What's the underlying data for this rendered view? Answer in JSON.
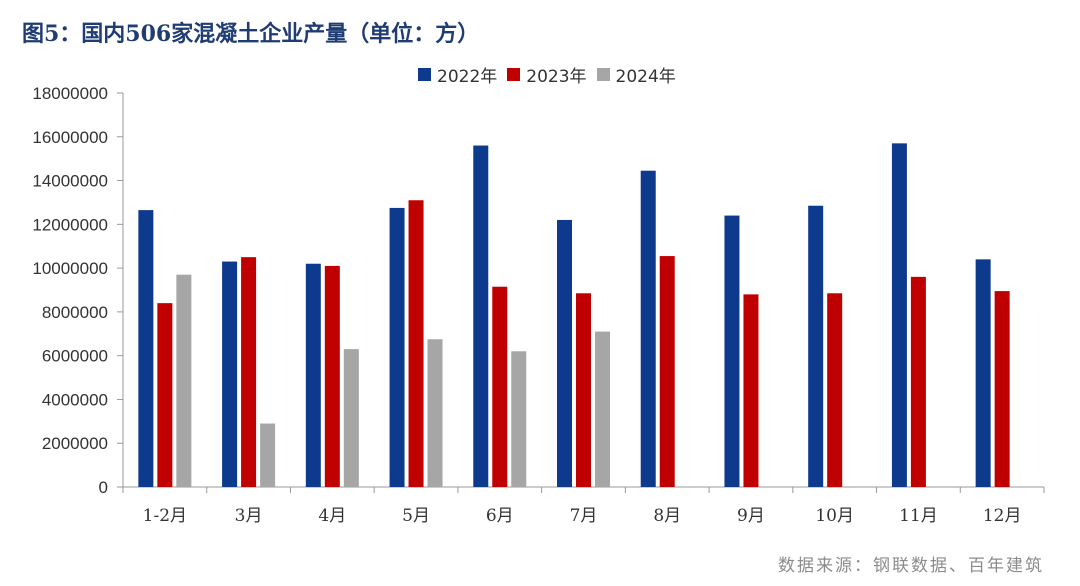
{
  "title": "图5：国内506家混凝土企业产量（单位：方）",
  "source": "数据来源：钢联数据、百年建筑",
  "chart_data": {
    "type": "bar",
    "categories": [
      "1-2月",
      "3月",
      "4月",
      "5月",
      "6月",
      "7月",
      "8月",
      "9月",
      "10月",
      "11月",
      "12月"
    ],
    "series": [
      {
        "name": "2022年",
        "color": "#0d3a8c",
        "values": [
          12650000,
          10300000,
          10200000,
          12750000,
          15600000,
          12200000,
          14450000,
          12400000,
          12850000,
          15700000,
          10400000
        ]
      },
      {
        "name": "2023年",
        "color": "#c00000",
        "values": [
          8400000,
          10500000,
          10100000,
          13100000,
          9150000,
          8850000,
          10550000,
          8800000,
          8850000,
          9600000,
          8950000
        ]
      },
      {
        "name": "2024年",
        "color": "#a6a6a6",
        "values": [
          9700000,
          2900000,
          6300000,
          6750000,
          6200000,
          7100000,
          null,
          null,
          null,
          null,
          null
        ]
      }
    ],
    "ylim": [
      0,
      18000000
    ],
    "yticks": [
      0,
      2000000,
      4000000,
      6000000,
      8000000,
      10000000,
      12000000,
      14000000,
      16000000,
      18000000
    ],
    "ytick_labels": [
      "0",
      "2000000",
      "4000000",
      "6000000",
      "8000000",
      "10000000",
      "12000000",
      "14000000",
      "16000000",
      "18000000"
    ],
    "legend": "top-center",
    "grid": false
  }
}
